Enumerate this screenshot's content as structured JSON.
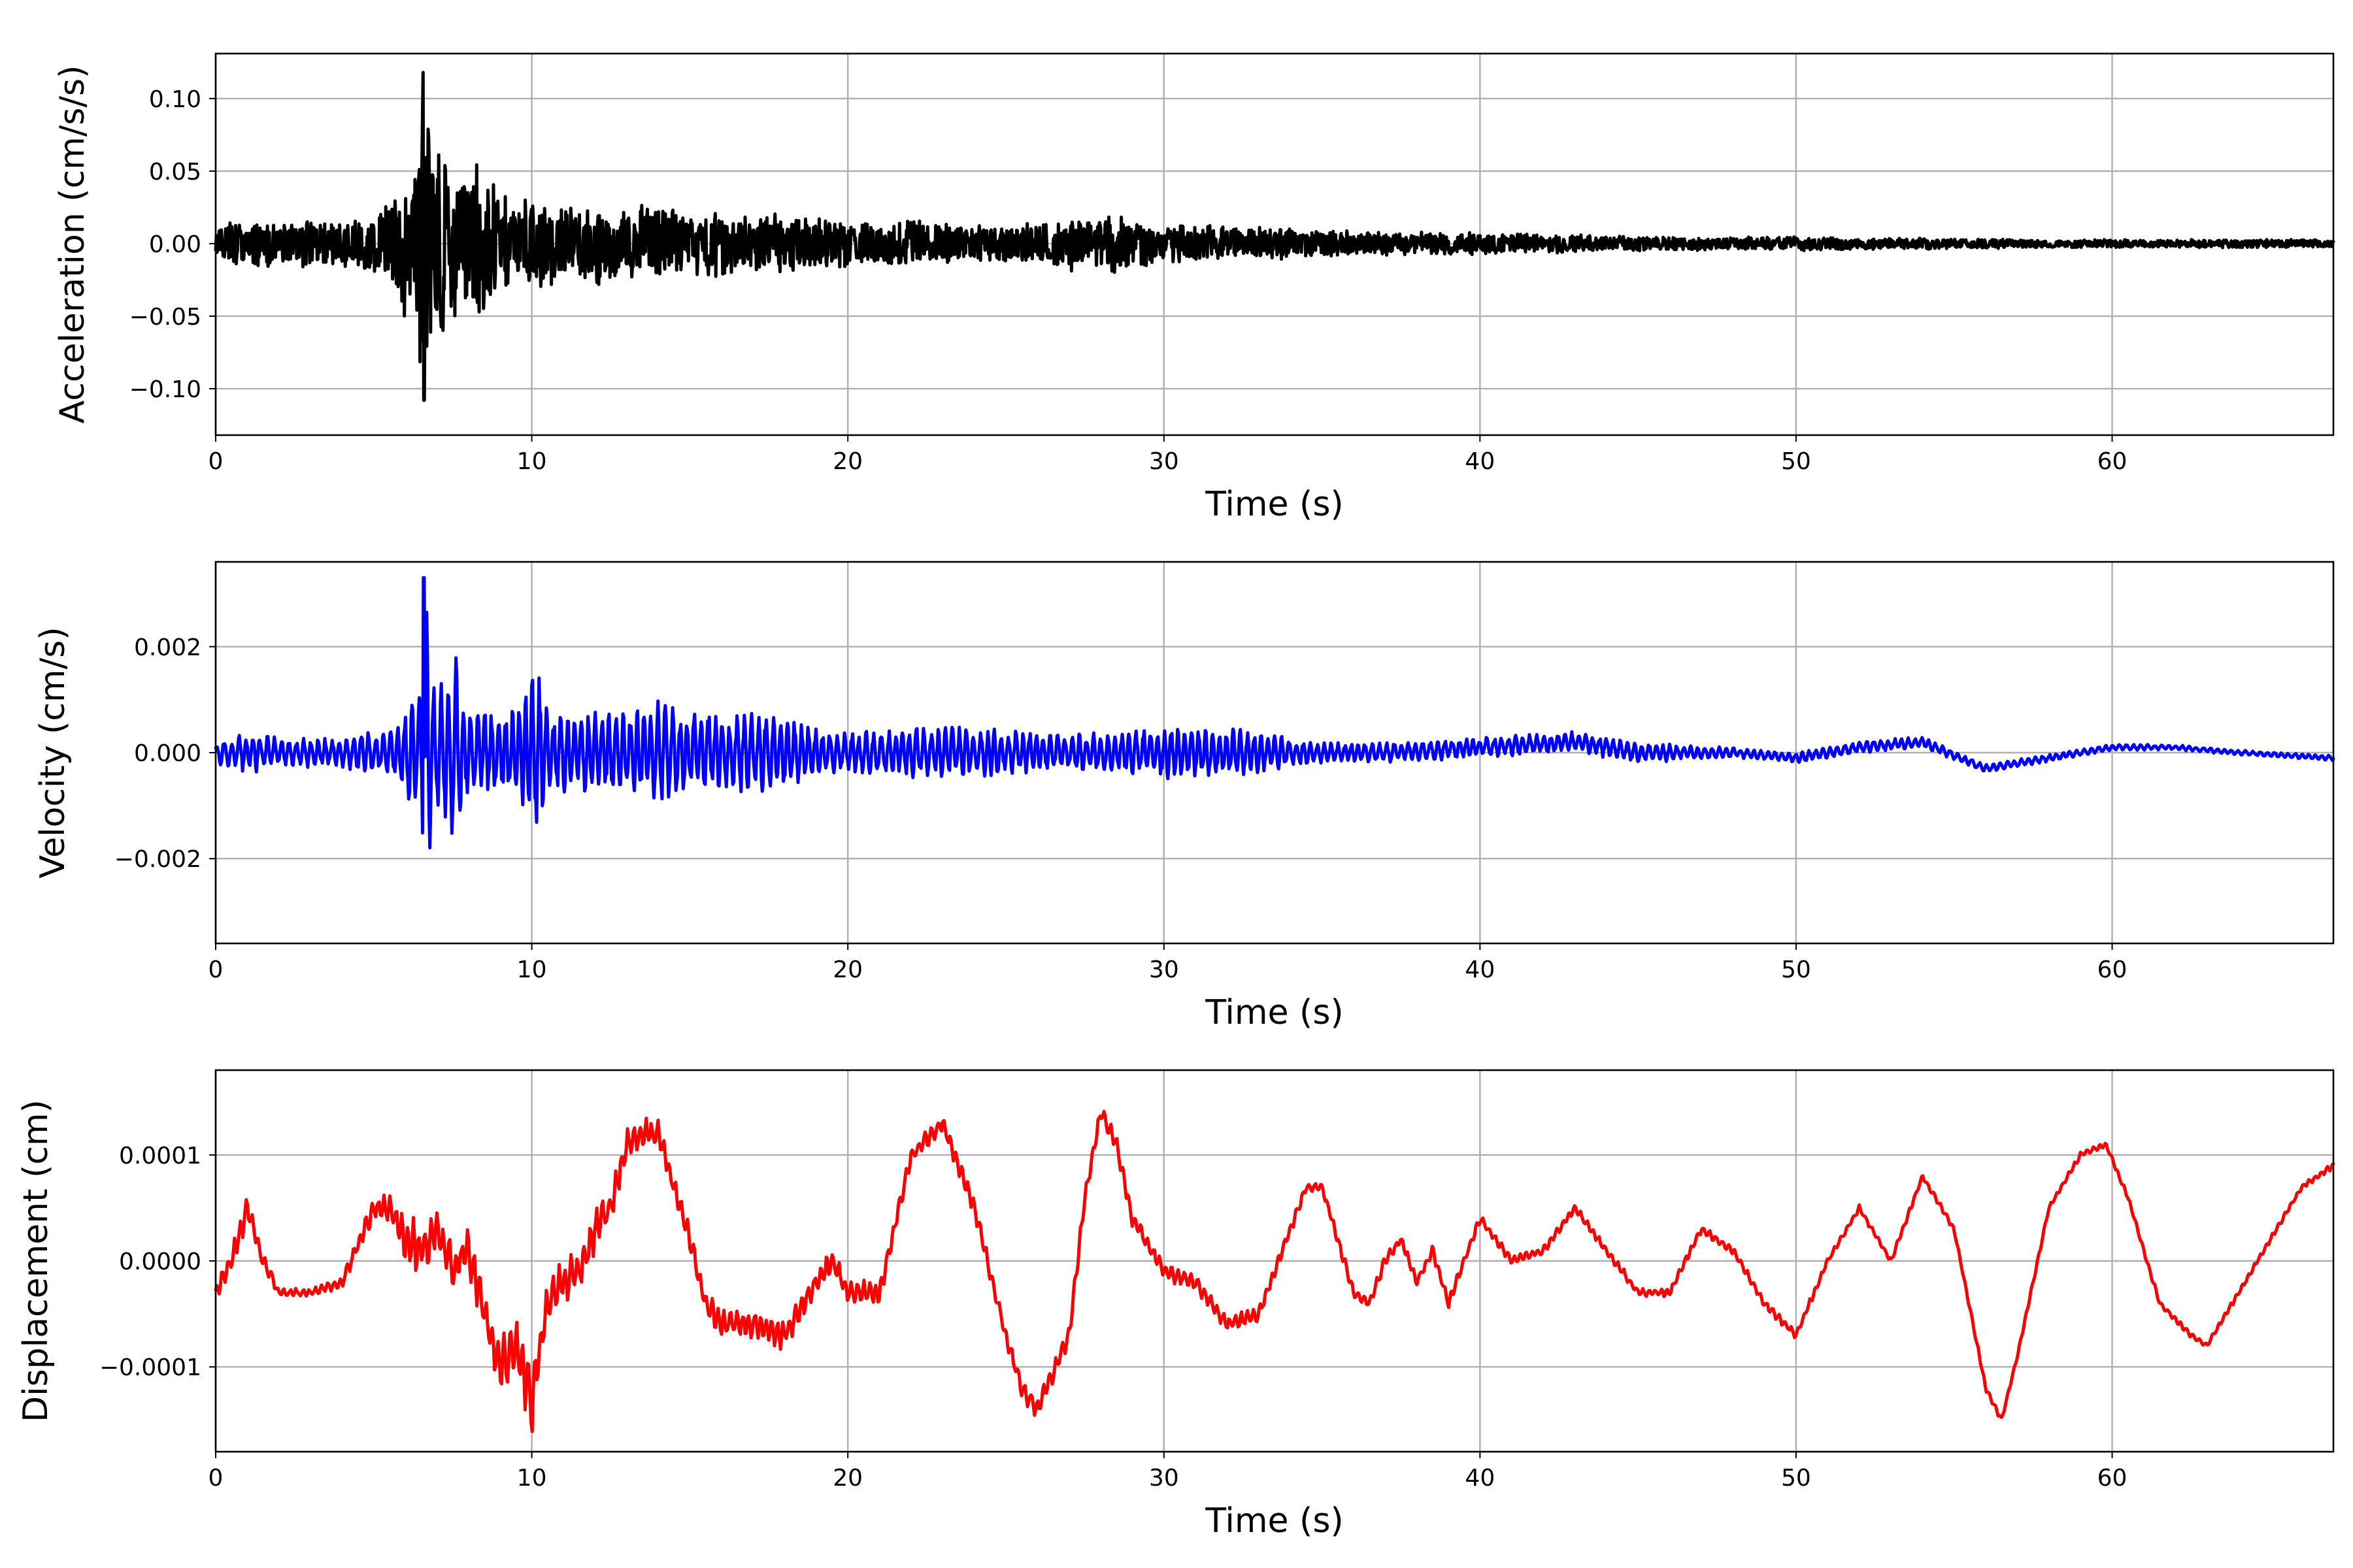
{
  "chart_data": [
    {
      "type": "line",
      "title": "",
      "xlabel": "Time (s)",
      "ylabel": "Acceleration (cm/s/s)",
      "xlim": [
        0,
        67
      ],
      "ylim": [
        -0.132,
        0.131
      ],
      "xticks": [
        0,
        10,
        20,
        30,
        40,
        50,
        60
      ],
      "xtick_labels": [
        "0",
        "10",
        "20",
        "30",
        "40",
        "50",
        "60"
      ],
      "yticks": [
        0.1,
        0.05,
        0.0,
        -0.05,
        -0.1
      ],
      "ytick_labels": [
        "0.10",
        "0.05",
        "0.00",
        "−0.05",
        "−0.10"
      ],
      "grid": true,
      "legend": "none",
      "series": [
        {
          "color": "#000000",
          "x": [
            0,
            1,
            2,
            3,
            4,
            5,
            5.5,
            5.8,
            6.0,
            6.2,
            6.4,
            6.55,
            6.6,
            6.8,
            7.0,
            7.3,
            7.6,
            7.9,
            8.2,
            8.5,
            8.8,
            9.0,
            9.5,
            10,
            11,
            12,
            13,
            14,
            15,
            16,
            17,
            18,
            19,
            20,
            22,
            24,
            26,
            27,
            28.3,
            30,
            32,
            34,
            36,
            38,
            40,
            42,
            44,
            46,
            48,
            50,
            52,
            54,
            56,
            58,
            60,
            62,
            64,
            67
          ],
          "envelope": [
            0.012,
            0.018,
            0.015,
            0.017,
            0.015,
            0.022,
            0.03,
            0.045,
            0.055,
            0.06,
            0.07,
            0.12,
            0.11,
            0.072,
            0.08,
            0.06,
            0.07,
            0.055,
            0.06,
            0.05,
            0.05,
            0.035,
            0.03,
            0.035,
            0.028,
            0.03,
            0.025,
            0.03,
            0.022,
            0.025,
            0.02,
            0.022,
            0.02,
            0.018,
            0.016,
            0.015,
            0.016,
            0.02,
            0.022,
            0.014,
            0.013,
            0.011,
            0.009,
            0.008,
            0.008,
            0.007,
            0.006,
            0.005,
            0.005,
            0.005,
            0.004,
            0.004,
            0.0035,
            0.003,
            0.003,
            0.003,
            0.003,
            0.003
          ]
        }
      ]
    },
    {
      "type": "line",
      "title": "",
      "xlabel": "Time (s)",
      "ylabel": "Velocity (cm/s)",
      "xlim": [
        0,
        67
      ],
      "ylim": [
        -0.0036,
        0.0036
      ],
      "xticks": [
        0,
        10,
        20,
        30,
        40,
        50,
        60
      ],
      "xtick_labels": [
        "0",
        "10",
        "20",
        "30",
        "40",
        "50",
        "60"
      ],
      "yticks": [
        0.002,
        0.0,
        -0.002
      ],
      "ytick_labels": [
        "0.002",
        "0.000",
        "−0.002"
      ],
      "grid": true,
      "legend": "none",
      "series": [
        {
          "color": "#0000ff",
          "x": [
            0,
            1,
            2,
            3,
            4,
            5,
            5.8,
            6.2,
            6.5,
            6.6,
            6.9,
            7.2,
            7.6,
            8.0,
            8.5,
            9.0,
            9.6,
            10.2,
            10.5,
            11,
            12,
            13,
            14,
            15,
            16,
            17,
            18,
            19,
            20,
            22,
            24,
            26,
            28,
            30,
            32,
            33,
            35,
            37,
            40,
            43,
            45,
            48,
            50,
            52,
            54,
            56,
            58,
            60,
            62,
            64,
            67
          ],
          "baseline": [
            0,
            0,
            0,
            0,
            0,
            0,
            0,
            0,
            0,
            0,
            0,
            0,
            0,
            0,
            0,
            0,
            0,
            0,
            0,
            0,
            0,
            0,
            0,
            0,
            0,
            0,
            0,
            0,
            0,
            0,
            0,
            0,
            0,
            0,
            0,
            0,
            0,
            0,
            0.0001,
            0.0002,
            0.0,
            0.0,
            -0.0001,
            0.0001,
            0.0002,
            -0.0003,
            -0.0001,
            0.0001,
            0.0001,
            0.0,
            -0.0001
          ],
          "envelope": [
            0.0002,
            0.0004,
            0.0003,
            0.0003,
            0.0003,
            0.0004,
            0.0006,
            0.0012,
            0.0016,
            0.0033,
            0.0014,
            0.0013,
            0.0018,
            0.0008,
            0.0008,
            0.0008,
            0.0009,
            0.0017,
            0.0009,
            0.0008,
            0.0008,
            0.0008,
            0.001,
            0.0008,
            0.0008,
            0.0008,
            0.0007,
            0.0005,
            0.0004,
            0.0005,
            0.0005,
            0.0004,
            0.0004,
            0.0005,
            0.0005,
            0.0004,
            0.0002,
            0.0002,
            0.0002,
            0.0002,
            0.0002,
            0.0001,
            0.0001,
            0.00012,
            0.0001,
            8e-05,
            7e-05,
            6e-05,
            5e-05,
            5e-05,
            5e-05
          ]
        }
      ]
    },
    {
      "type": "line",
      "title": "",
      "xlabel": "Time (s)",
      "ylabel": "Displacement (cm)",
      "xlim": [
        0,
        67
      ],
      "ylim": [
        -0.00018,
        0.00018
      ],
      "xticks": [
        0,
        10,
        20,
        30,
        40,
        50,
        60
      ],
      "xtick_labels": [
        "0",
        "10",
        "20",
        "30",
        "40",
        "50",
        "60"
      ],
      "yticks": [
        0.0001,
        0.0,
        -0.0001
      ],
      "ytick_labels": [
        "0.0001",
        "0.0000",
        "−0.0001"
      ],
      "grid": true,
      "legend": "none",
      "series": [
        {
          "color": "#ff0000",
          "x": [
            0,
            0.5,
            1.0,
            1.5,
            2.0,
            3.0,
            4.0,
            5.0,
            5.5,
            6.0,
            6.5,
            7.0,
            7.5,
            8.0,
            8.5,
            9.0,
            9.5,
            10.0,
            10.5,
            11.0,
            11.5,
            12.0,
            12.5,
            13.0,
            13.5,
            14.0,
            14.5,
            15.0,
            15.5,
            16.0,
            17.0,
            18.0,
            19.0,
            19.5,
            20.0,
            21.0,
            22.0,
            23.0,
            24.0,
            25.0,
            25.5,
            26.0,
            27.0,
            27.5,
            28.0,
            28.5,
            29.0,
            30.0,
            31.0,
            32.0,
            33.0,
            34.0,
            34.5,
            35.0,
            36.0,
            36.5,
            37.0,
            37.5,
            38.0,
            38.5,
            39.0,
            40.0,
            41.0,
            42.0,
            43.0,
            44.0,
            45.0,
            46.0,
            47.0,
            48.0,
            49.0,
            50.0,
            51.0,
            52.0,
            53.0,
            54.0,
            55.0,
            56.0,
            56.5,
            57.0,
            58.0,
            59.0,
            59.8,
            60.5,
            61.5,
            62.5,
            63.0,
            64.0,
            65.0,
            66.0,
            67.0
          ],
          "y": [
            -3e-05,
            0.0,
            5e-05,
            0.0,
            -3e-05,
            -3e-05,
            -2e-05,
            5e-05,
            5e-05,
            2e-05,
            1e-05,
            3e-05,
            -1e-05,
            1e-05,
            -5e-05,
            -0.0001,
            -8e-05,
            -0.00013,
            -4e-05,
            -2e-05,
            -1e-05,
            3e-05,
            5e-05,
            0.00011,
            0.00012,
            0.00012,
            7e-05,
            2e-05,
            -4e-05,
            -6e-05,
            -6e-05,
            -7e-05,
            -2e-05,
            0.0,
            -3e-05,
            -3e-05,
            0.0001,
            0.00013,
            5e-05,
            -7e-05,
            -0.00012,
            -0.00014,
            -7e-05,
            6e-05,
            0.00014,
            0.00011,
            4e-05,
            -1e-05,
            -2e-05,
            -6e-05,
            -5e-05,
            3e-05,
            7e-05,
            7e-05,
            -3e-05,
            -4e-05,
            0.0,
            2e-05,
            -2e-05,
            1e-05,
            -4e-05,
            4e-05,
            0.0,
            1e-05,
            5e-05,
            1e-05,
            -3e-05,
            -3e-05,
            3e-05,
            1e-05,
            -4e-05,
            -7e-05,
            0.0,
            5e-05,
            0.0,
            8e-05,
            3e-05,
            -0.00012,
            -0.00015,
            -9e-05,
            5e-05,
            0.0001,
            0.00011,
            6e-05,
            -4e-05,
            -7e-05,
            -8e-05,
            -3e-05,
            2e-05,
            7e-05,
            9e-05
          ],
          "jitter": [
            5e-06,
            8e-06,
            1e-05,
            6e-06,
            3e-06,
            3e-06,
            4e-06,
            8e-06,
            1e-05,
            1.5e-05,
            2e-05,
            2e-05,
            1.8e-05,
            1.5e-05,
            1.5e-05,
            2e-05,
            2e-05,
            2.5e-05,
            1.5e-05,
            1.5e-05,
            1.5e-05,
            1.5e-05,
            1.2e-05,
            1.2e-05,
            1e-05,
            1e-05,
            8e-06,
            1e-05,
            1e-05,
            1e-05,
            1e-05,
            1e-05,
            1e-05,
            1e-05,
            8e-06,
            8e-06,
            6e-06,
            6e-06,
            6e-06,
            6e-06,
            8e-06,
            8e-06,
            6e-06,
            6e-06,
            6e-06,
            6e-06,
            6e-06,
            6e-06,
            6e-06,
            6e-06,
            6e-06,
            4e-06,
            4e-06,
            4e-06,
            4e-06,
            4e-06,
            4e-06,
            4e-06,
            4e-06,
            4e-06,
            4e-06,
            3e-06,
            3e-06,
            3e-06,
            3e-06,
            3e-06,
            3e-06,
            3e-06,
            3e-06,
            3e-06,
            3e-06,
            3e-06,
            2e-06,
            2e-06,
            2e-06,
            2e-06,
            2e-06,
            2e-06,
            2e-06,
            2e-06,
            2e-06,
            2e-06,
            2e-06,
            2e-06,
            2e-06,
            2e-06,
            2e-06,
            2e-06,
            2e-06,
            2e-06,
            2e-06
          ]
        }
      ]
    }
  ]
}
